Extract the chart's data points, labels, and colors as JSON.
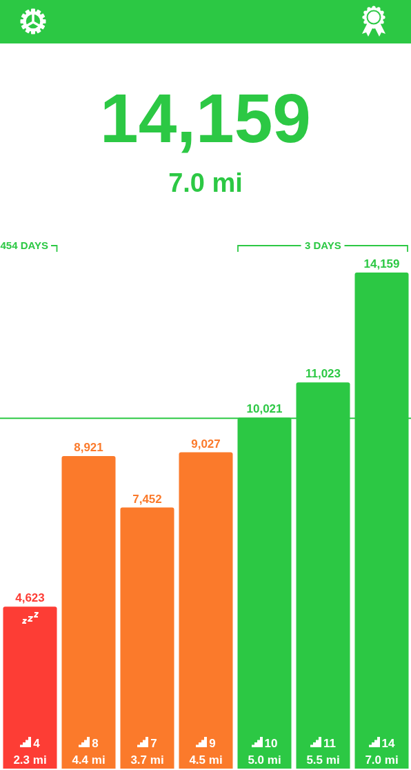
{
  "chart_data": {
    "type": "bar",
    "title": "14,159",
    "subtitle": "7.0 mi",
    "categories": [
      "2.3 mi",
      "4.4 mi",
      "3.7 mi",
      "4.5 mi",
      "5.0 mi",
      "5.5 mi",
      "7.0 mi"
    ],
    "values": [
      4623,
      8921,
      7452,
      9027,
      10021,
      11023,
      14159
    ],
    "colors": [
      "#fd3d35",
      "#fb7a2b",
      "#fb7a2b",
      "#fb7a2b",
      "#2cc844",
      "#2cc844",
      "#2cc844"
    ],
    "value_labels": [
      "4,623",
      "8,921",
      "7,452",
      "9,027",
      "10,021",
      "11,023",
      "14,159"
    ],
    "ref_lines": [
      {
        "axis": "y",
        "value": 10000,
        "color": "#2cc844"
      }
    ],
    "annotations": [
      "4",
      "8",
      "7",
      "9",
      "10",
      "11",
      "14",
      "454 DAYS",
      "3 DAYS"
    ],
    "tick_labels": "x",
    "grid": false,
    "legend": false
  }
}
